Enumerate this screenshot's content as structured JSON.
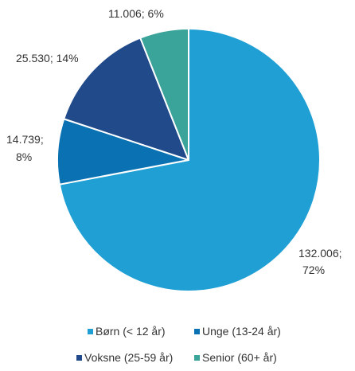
{
  "chart_data": {
    "type": "pie",
    "slices": [
      {
        "name": "Børn (< 12 år)",
        "value": 132006,
        "value_label": "132.006;",
        "percent_label": "72%",
        "color": "#1f9fd4"
      },
      {
        "name": "Unge (13-24 år)",
        "value": 14739,
        "value_label": "14.739;",
        "percent_label": "8%",
        "color": "#0a72b2"
      },
      {
        "name": "Voksne (25-59 år)",
        "value": 25530,
        "value_label": "25.530; 14%",
        "percent_label": "",
        "color": "#204a8a"
      },
      {
        "name": "Senior (60+ år)",
        "value": 11006,
        "value_label": "11.006; 6%",
        "percent_label": "",
        "color": "#3aa39a"
      }
    ],
    "start_angle_deg": 0,
    "direction": "clockwise",
    "legend_position": "bottom",
    "slice_border_color": "#ffffff"
  }
}
